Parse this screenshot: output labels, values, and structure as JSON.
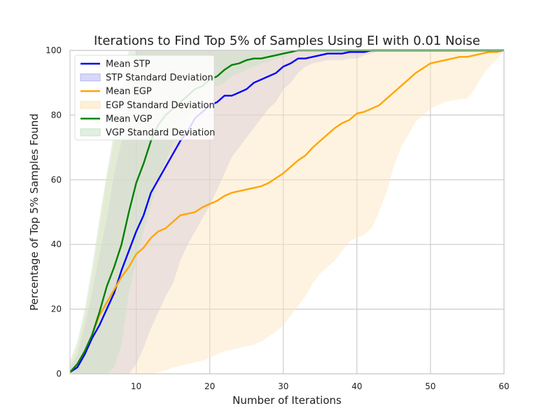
{
  "chart_data": {
    "type": "line",
    "title": "Iterations to Find Top 5% of Samples Using EI with 0.01 Noise",
    "xlabel": "Number of Iterations",
    "ylabel": "Percentage of Top 5% Samples Found",
    "xlim": [
      1,
      60
    ],
    "ylim": [
      0,
      100
    ],
    "xticks": [
      10,
      20,
      30,
      40,
      50,
      60
    ],
    "yticks": [
      0,
      20,
      40,
      60,
      80,
      100
    ],
    "grid": true,
    "legend_position": "upper-left",
    "legend": [
      "Mean STP",
      "STP Standard Deviation",
      "Mean EGP",
      "EGP Standard Deviation",
      "Mean VGP",
      "VGP Standard Deviation"
    ],
    "series": [
      {
        "name": "Mean STP",
        "color": "#0000ff",
        "band_name": "STP Standard Deviation",
        "band_color": "#b8b8f0",
        "x": [
          1,
          2,
          3,
          4,
          5,
          6,
          7,
          8,
          9,
          10,
          11,
          12,
          13,
          14,
          15,
          16,
          17,
          18,
          19,
          20,
          21,
          22,
          23,
          24,
          25,
          26,
          27,
          28,
          29,
          30,
          31,
          32,
          33,
          34,
          35,
          36,
          37,
          38,
          39,
          40,
          41,
          42,
          43,
          44,
          45,
          50,
          55,
          60
        ],
        "mean": [
          0.5,
          2,
          6,
          11,
          15,
          20,
          25,
          32,
          38,
          44,
          49,
          56,
          60,
          64,
          68,
          72,
          75,
          79,
          81,
          83,
          84,
          86,
          86,
          87,
          88,
          90,
          91,
          92,
          93,
          95,
          96,
          97.5,
          97.5,
          98,
          98.5,
          99,
          99,
          99,
          99.5,
          99.5,
          99.5,
          100,
          100,
          100,
          100,
          100,
          100,
          100
        ],
        "lower": [
          0,
          0,
          0,
          0,
          0,
          0,
          0,
          0,
          0,
          3,
          8,
          14,
          19,
          24,
          28,
          35,
          40,
          44,
          48,
          52,
          57,
          62,
          67,
          70,
          73,
          76,
          79,
          82,
          84,
          88,
          90,
          93,
          95,
          96,
          96.5,
          97,
          97,
          97,
          97.5,
          97.5,
          98.5,
          99,
          100,
          100,
          100,
          100,
          100,
          100
        ],
        "upper": [
          2,
          6,
          15,
          25,
          37,
          48,
          62,
          72,
          84,
          100,
          100,
          100,
          100,
          100,
          100,
          100,
          100,
          100,
          100,
          100,
          100,
          100,
          100,
          100,
          100,
          100,
          100,
          100,
          100,
          100,
          100,
          100,
          100,
          100,
          100,
          100,
          100,
          100,
          100,
          100,
          100,
          100,
          100,
          100,
          100,
          100,
          100,
          100
        ]
      },
      {
        "name": "Mean EGP",
        "color": "#ffa500",
        "band_name": "EGP Standard Deviation",
        "band_color": "#fde5bb",
        "x": [
          1,
          2,
          3,
          4,
          5,
          6,
          7,
          8,
          9,
          10,
          11,
          12,
          13,
          14,
          15,
          16,
          17,
          18,
          19,
          20,
          21,
          22,
          23,
          24,
          25,
          26,
          27,
          28,
          29,
          30,
          31,
          32,
          33,
          34,
          35,
          36,
          37,
          38,
          39,
          40,
          41,
          42,
          43,
          44,
          45,
          46,
          47,
          48,
          49,
          50,
          51,
          52,
          53,
          54,
          55,
          56,
          57,
          58,
          59,
          60
        ],
        "mean": [
          0.5,
          3,
          7,
          12,
          18,
          22,
          26,
          30,
          33,
          37,
          39,
          42,
          44,
          45,
          47,
          49,
          49.5,
          50,
          51.5,
          52.5,
          53.5,
          55,
          56,
          56.5,
          57,
          57.5,
          58,
          59,
          60.5,
          62,
          64,
          66,
          67.5,
          70,
          72,
          74,
          76,
          77.5,
          78.5,
          80.5,
          81,
          82,
          83,
          85,
          87,
          89,
          91,
          93,
          94.5,
          96,
          96.5,
          97,
          97.5,
          98,
          98,
          98.5,
          99,
          99.5,
          99.5,
          100
        ],
        "lower": [
          0,
          0,
          0,
          0,
          0,
          0,
          0,
          0,
          0,
          0,
          0,
          0,
          0.5,
          1,
          2,
          2.5,
          3,
          3.5,
          4,
          5,
          6,
          7,
          7.5,
          8,
          8.5,
          9,
          10,
          11.5,
          13,
          15,
          18,
          21,
          24,
          28,
          31,
          33,
          35,
          38,
          41,
          42,
          43,
          45,
          50,
          56,
          64,
          70,
          74,
          78,
          80,
          82,
          83,
          84,
          84.5,
          85,
          85,
          88,
          92,
          95,
          97,
          100
        ],
        "upper": [
          3,
          8,
          18,
          30,
          45,
          60,
          72,
          82,
          92,
          100,
          100,
          100,
          100,
          100,
          100,
          100,
          100,
          100,
          100,
          100,
          100,
          100,
          100,
          100,
          100,
          100,
          100,
          100,
          100,
          100,
          100,
          100,
          100,
          100,
          100,
          100,
          100,
          100,
          100,
          100,
          100,
          100,
          100,
          100,
          100,
          100,
          100,
          100,
          100,
          100,
          100,
          100,
          100,
          100,
          100,
          100,
          100,
          100,
          100,
          100
        ]
      },
      {
        "name": "Mean VGP",
        "color": "#008000",
        "band_name": "VGP Standard Deviation",
        "band_color": "#c5e3c5",
        "x": [
          1,
          2,
          3,
          4,
          5,
          6,
          7,
          8,
          9,
          10,
          11,
          12,
          13,
          14,
          15,
          16,
          17,
          18,
          19,
          20,
          21,
          22,
          23,
          24,
          25,
          26,
          27,
          28,
          29,
          30,
          31,
          32,
          33,
          34,
          35,
          40,
          45,
          50,
          55,
          60
        ],
        "mean": [
          0.5,
          3,
          7,
          12,
          19,
          27,
          33,
          40,
          50,
          59,
          65,
          72,
          77,
          80,
          82,
          84,
          86,
          88,
          89,
          91,
          92,
          94,
          95.5,
          96,
          97,
          97.5,
          97.5,
          98,
          98.5,
          99,
          99.5,
          100,
          100,
          100,
          100,
          100,
          100,
          100,
          100,
          100
        ],
        "lower": [
          0,
          0,
          0,
          0,
          0,
          0,
          2,
          9,
          25,
          35,
          44,
          52,
          60,
          66,
          71,
          75,
          79,
          82,
          85,
          88,
          89,
          90,
          92,
          93,
          94,
          95,
          96,
          96.5,
          97.5,
          98,
          99,
          100,
          100,
          100,
          100,
          100,
          100,
          100,
          100,
          100
        ],
        "upper": [
          4,
          10,
          20,
          33,
          48,
          62,
          75,
          88,
          100,
          100,
          100,
          100,
          100,
          100,
          100,
          100,
          100,
          100,
          100,
          100,
          100,
          100,
          100,
          100,
          100,
          100,
          100,
          100,
          100,
          100,
          100,
          100,
          100,
          100,
          100,
          100,
          100,
          100,
          100,
          100
        ]
      }
    ]
  }
}
